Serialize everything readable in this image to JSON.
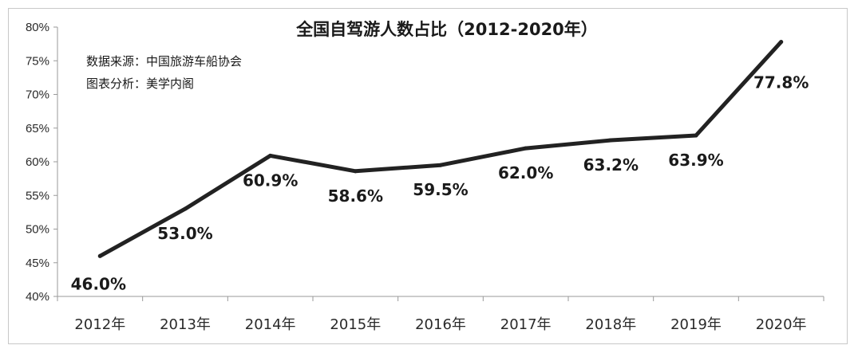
{
  "chart_data": {
    "type": "line",
    "title": "全国自驾游人数占比（2012-2020年）",
    "notes": [
      "数据来源：中国旅游车船协会",
      "图表分析：美学内阁"
    ],
    "categories": [
      "2012年",
      "2013年",
      "2014年",
      "2015年",
      "2016年",
      "2017年",
      "2018年",
      "2019年",
      "2020年"
    ],
    "series": [
      {
        "values": [
          46.0,
          53.0,
          60.9,
          58.6,
          59.5,
          62.0,
          63.2,
          63.9,
          77.8
        ]
      }
    ],
    "data_labels": [
      "46.0%",
      "53.0%",
      "60.9%",
      "58.6%",
      "59.5%",
      "62.0%",
      "63.2%",
      "63.9%",
      "77.8%"
    ],
    "ylim": [
      40,
      80
    ],
    "yticks": [
      40,
      45,
      50,
      55,
      60,
      65,
      70,
      75,
      80
    ],
    "ytick_labels": [
      "40%",
      "45%",
      "50%",
      "55%",
      "60%",
      "65%",
      "70%",
      "75%",
      "80%"
    ],
    "grid": false,
    "line_color": "#222222",
    "xlabel": "",
    "ylabel": ""
  }
}
